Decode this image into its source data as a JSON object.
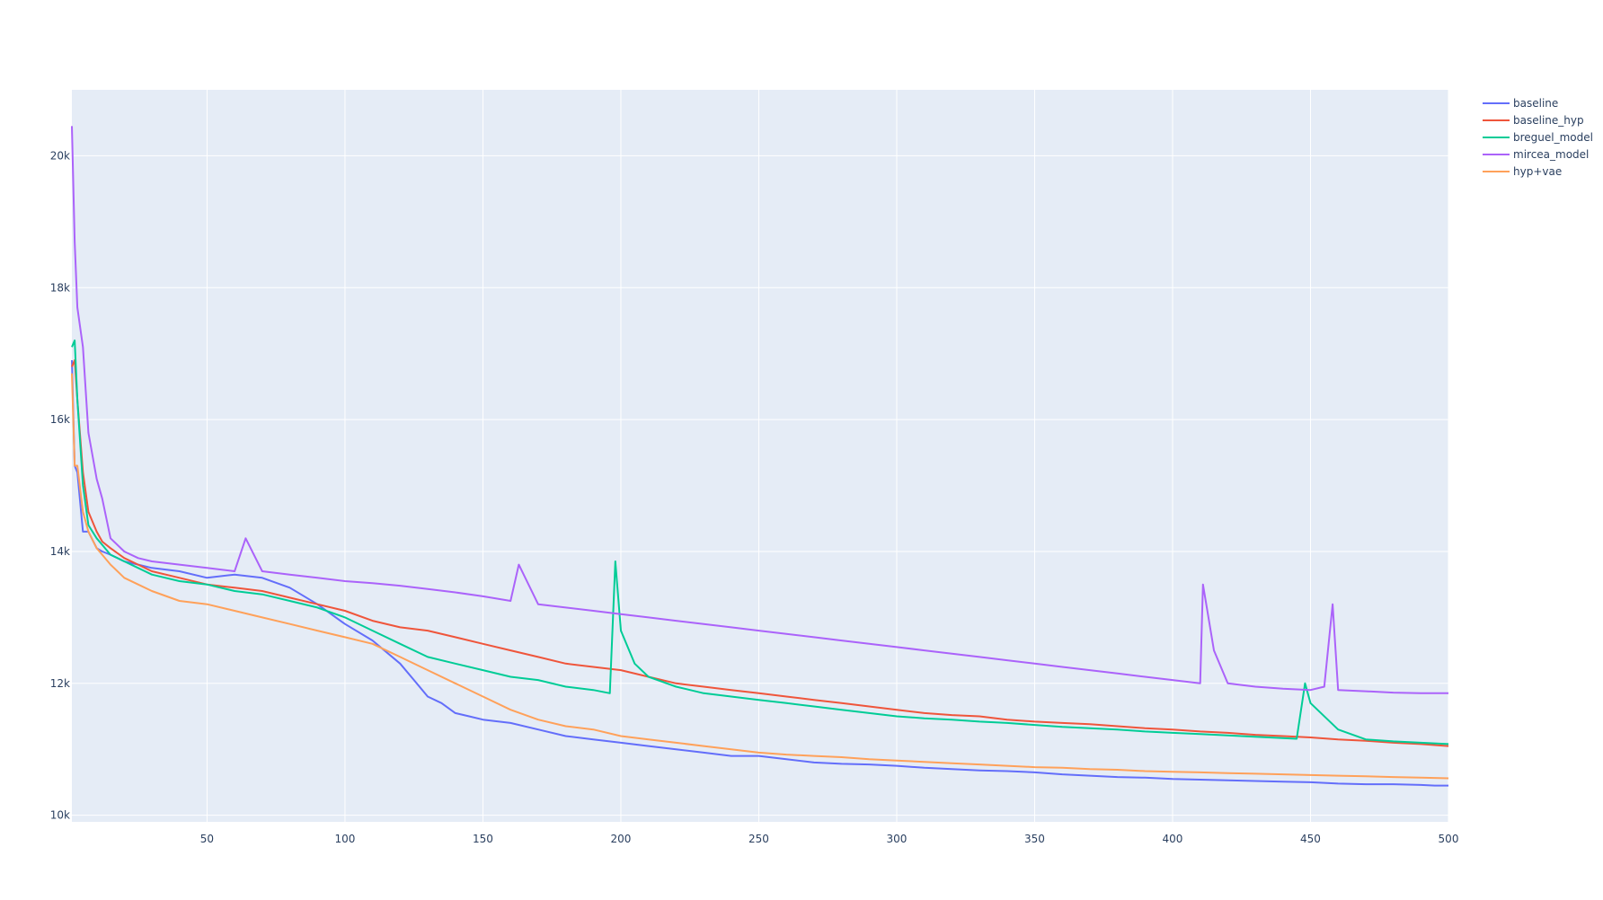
{
  "colors": {
    "plot_bg": "#e5ecf6",
    "grid": "#ffffff",
    "text": "#2a3f5f"
  },
  "chart_data": {
    "type": "line",
    "title": "",
    "xlabel": "",
    "ylabel": "",
    "xlim": [
      1,
      500
    ],
    "ylim": [
      9900,
      21000
    ],
    "grid": true,
    "legend_position": "top-right",
    "x_ticks": [
      50,
      100,
      150,
      200,
      250,
      300,
      350,
      400,
      450,
      500
    ],
    "x_tick_labels": [
      "50",
      "100",
      "150",
      "200",
      "250",
      "300",
      "350",
      "400",
      "450",
      "500"
    ],
    "y_ticks": [
      10000,
      12000,
      14000,
      16000,
      18000,
      20000
    ],
    "y_tick_labels": [
      "10k",
      "12k",
      "14k",
      "16k",
      "18k",
      "20k"
    ],
    "series": [
      {
        "name": "baseline",
        "color": "#636efa",
        "x": [
          1,
          2,
          3,
          5,
          7,
          10,
          12,
          15,
          20,
          25,
          30,
          40,
          50,
          60,
          70,
          80,
          90,
          100,
          110,
          120,
          125,
          130,
          135,
          140,
          145,
          150,
          160,
          170,
          180,
          190,
          200,
          210,
          220,
          230,
          240,
          250,
          260,
          270,
          280,
          290,
          300,
          310,
          320,
          330,
          340,
          350,
          360,
          370,
          380,
          390,
          400,
          410,
          420,
          430,
          440,
          450,
          460,
          470,
          480,
          490,
          495,
          500
        ],
        "y": [
          16900,
          15300,
          15200,
          14300,
          14300,
          14050,
          14000,
          13950,
          13850,
          13800,
          13750,
          13700,
          13600,
          13650,
          13600,
          13450,
          13200,
          12900,
          12650,
          12300,
          12050,
          11800,
          11700,
          11550,
          11500,
          11450,
          11400,
          11300,
          11200,
          11150,
          11100,
          11050,
          11000,
          10950,
          10900,
          10900,
          10850,
          10800,
          10780,
          10770,
          10750,
          10720,
          10700,
          10680,
          10670,
          10650,
          10620,
          10600,
          10580,
          10570,
          10550,
          10540,
          10530,
          10520,
          10510,
          10500,
          10480,
          10470,
          10470,
          10460,
          10450,
          10450
        ]
      },
      {
        "name": "baseline_hyp",
        "color": "#ef553b",
        "x": [
          1,
          2,
          3,
          5,
          7,
          10,
          12,
          15,
          20,
          25,
          30,
          40,
          50,
          60,
          70,
          80,
          90,
          100,
          110,
          120,
          130,
          140,
          150,
          160,
          170,
          180,
          190,
          200,
          210,
          220,
          230,
          240,
          250,
          260,
          270,
          280,
          290,
          300,
          310,
          320,
          330,
          340,
          350,
          360,
          370,
          380,
          390,
          400,
          410,
          420,
          430,
          440,
          450,
          460,
          470,
          480,
          490,
          500
        ],
        "y": [
          16800,
          16900,
          16300,
          15200,
          14600,
          14300,
          14150,
          14050,
          13900,
          13800,
          13700,
          13600,
          13500,
          13450,
          13400,
          13300,
          13200,
          13100,
          12950,
          12850,
          12800,
          12700,
          12600,
          12500,
          12400,
          12300,
          12250,
          12200,
          12100,
          12000,
          11950,
          11900,
          11850,
          11800,
          11750,
          11700,
          11650,
          11600,
          11550,
          11520,
          11500,
          11450,
          11420,
          11400,
          11380,
          11350,
          11320,
          11300,
          11270,
          11250,
          11220,
          11200,
          11180,
          11150,
          11130,
          11100,
          11080,
          11050
        ]
      },
      {
        "name": "breguel_model",
        "color": "#00cc96",
        "x": [
          1,
          2,
          3,
          5,
          7,
          10,
          12,
          15,
          20,
          25,
          30,
          40,
          50,
          60,
          70,
          80,
          90,
          100,
          110,
          120,
          130,
          140,
          150,
          160,
          170,
          180,
          190,
          196,
          198,
          200,
          205,
          210,
          220,
          230,
          240,
          250,
          260,
          270,
          280,
          290,
          300,
          310,
          320,
          330,
          340,
          350,
          360,
          370,
          380,
          390,
          400,
          410,
          420,
          430,
          440,
          445,
          448,
          450,
          460,
          470,
          480,
          490,
          500
        ],
        "y": [
          17100,
          17200,
          16300,
          15000,
          14400,
          14200,
          14100,
          13950,
          13850,
          13750,
          13650,
          13550,
          13500,
          13400,
          13350,
          13250,
          13150,
          13000,
          12800,
          12600,
          12400,
          12300,
          12200,
          12100,
          12050,
          11950,
          11900,
          11850,
          13850,
          12800,
          12300,
          12100,
          11950,
          11850,
          11800,
          11750,
          11700,
          11650,
          11600,
          11550,
          11500,
          11470,
          11450,
          11420,
          11400,
          11370,
          11340,
          11320,
          11300,
          11270,
          11250,
          11230,
          11210,
          11190,
          11170,
          11160,
          12000,
          11700,
          11300,
          11150,
          11120,
          11100,
          11080
        ]
      },
      {
        "name": "mircea_model",
        "color": "#ab63fa",
        "x": [
          1,
          2,
          3,
          5,
          7,
          10,
          12,
          15,
          20,
          25,
          30,
          40,
          50,
          60,
          64,
          70,
          80,
          90,
          100,
          110,
          120,
          130,
          140,
          150,
          160,
          163,
          170,
          180,
          190,
          200,
          210,
          220,
          230,
          240,
          250,
          260,
          270,
          280,
          290,
          300,
          310,
          320,
          330,
          340,
          350,
          360,
          370,
          380,
          390,
          400,
          410,
          411,
          415,
          420,
          430,
          440,
          450,
          455,
          458,
          460,
          470,
          480,
          490,
          500
        ],
        "y": [
          20450,
          18700,
          17700,
          17100,
          15800,
          15100,
          14800,
          14200,
          14000,
          13900,
          13850,
          13800,
          13750,
          13700,
          14200,
          13700,
          13650,
          13600,
          13550,
          13520,
          13480,
          13430,
          13380,
          13320,
          13250,
          13800,
          13200,
          13150,
          13100,
          13050,
          13000,
          12950,
          12900,
          12850,
          12800,
          12750,
          12700,
          12650,
          12600,
          12550,
          12500,
          12450,
          12400,
          12350,
          12300,
          12250,
          12200,
          12150,
          12100,
          12050,
          12000,
          13500,
          12500,
          12000,
          11950,
          11920,
          11900,
          11950,
          13200,
          11900,
          11880,
          11860,
          11850,
          11850
        ]
      },
      {
        "name": "hyp+vae",
        "color": "#ffa15a",
        "x": [
          1,
          2,
          3,
          5,
          7,
          10,
          12,
          15,
          20,
          25,
          30,
          40,
          50,
          60,
          70,
          80,
          90,
          100,
          110,
          120,
          130,
          140,
          150,
          160,
          170,
          180,
          190,
          200,
          210,
          220,
          230,
          240,
          250,
          260,
          270,
          280,
          290,
          300,
          310,
          320,
          330,
          340,
          350,
          360,
          370,
          380,
          390,
          400,
          410,
          420,
          430,
          440,
          450,
          460,
          470,
          480,
          490,
          500
        ],
        "y": [
          16700,
          15300,
          15300,
          14600,
          14300,
          14050,
          13950,
          13800,
          13600,
          13500,
          13400,
          13250,
          13200,
          13100,
          13000,
          12900,
          12800,
          12700,
          12600,
          12400,
          12200,
          12000,
          11800,
          11600,
          11450,
          11350,
          11300,
          11200,
          11150,
          11100,
          11050,
          11000,
          10950,
          10920,
          10900,
          10880,
          10850,
          10830,
          10810,
          10790,
          10770,
          10750,
          10730,
          10720,
          10700,
          10690,
          10670,
          10660,
          10650,
          10640,
          10630,
          10620,
          10610,
          10600,
          10590,
          10580,
          10570,
          10560
        ]
      }
    ]
  }
}
